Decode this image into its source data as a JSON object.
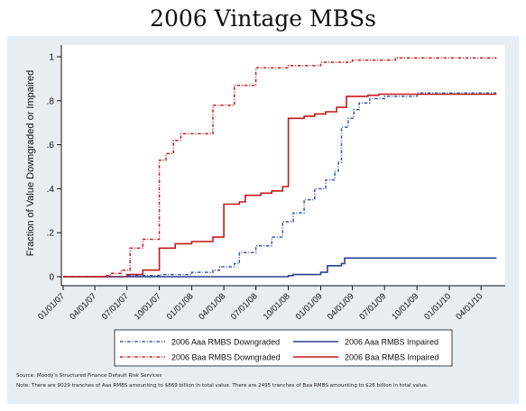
{
  "page": {
    "title": "2006 Vintage MBSs"
  },
  "footnotes": {
    "source": "Source: Moody's Structured Finance Default Risk Services",
    "note": "Note: There are 9029 tranches of Aaa RMBS amounting to $869 billion in total value. There are 2495 tranches of Baa RMBS amounting to $26 billion in total value."
  },
  "chart_data": {
    "type": "line",
    "title": "2006 Vintage MBSs",
    "xlabel": "",
    "ylabel": "Fraction of Value Downgraded or Impaired",
    "xlim": [
      "2007-01-01",
      "2010-06-01"
    ],
    "ylim": [
      0,
      1
    ],
    "x_tick_labels": [
      "01/01/07",
      "04/01/07",
      "07/01/07",
      "10/01/07",
      "01/01/08",
      "04/01/08",
      "07/01/08",
      "10/01/08",
      "01/01/09",
      "04/01/09",
      "07/01/09",
      "10/01/09",
      "01/01/10",
      "04/01/10"
    ],
    "y_tick_labels": [
      "0",
      ".2",
      ".4",
      ".6",
      ".8",
      "1"
    ],
    "y_ticks": [
      0,
      0.2,
      0.4,
      0.6,
      0.8,
      1
    ],
    "grid": false,
    "legend_position": "bottom",
    "series": [
      {
        "name": "2006 Aaa RMBS Downgraded",
        "color": "#3d55a8",
        "style": "dash-dot",
        "points": [
          [
            "2007-01-01",
            0
          ],
          [
            "2007-07-01",
            0.005
          ],
          [
            "2007-10-01",
            0.01
          ],
          [
            "2008-01-01",
            0.02
          ],
          [
            "2008-03-01",
            0.03
          ],
          [
            "2008-03-20",
            0.045
          ],
          [
            "2008-05-01",
            0.06
          ],
          [
            "2008-05-15",
            0.11
          ],
          [
            "2008-07-01",
            0.14
          ],
          [
            "2008-08-15",
            0.18
          ],
          [
            "2008-09-15",
            0.25
          ],
          [
            "2008-10-15",
            0.29
          ],
          [
            "2008-11-15",
            0.35
          ],
          [
            "2008-12-15",
            0.4
          ],
          [
            "2009-01-15",
            0.44
          ],
          [
            "2009-02-10",
            0.48
          ],
          [
            "2009-02-20",
            0.52
          ],
          [
            "2009-03-01",
            0.68
          ],
          [
            "2009-03-20",
            0.72
          ],
          [
            "2009-04-05",
            0.76
          ],
          [
            "2009-04-20",
            0.79
          ],
          [
            "2009-05-20",
            0.81
          ],
          [
            "2009-07-01",
            0.82
          ],
          [
            "2009-10-01",
            0.835
          ],
          [
            "2010-05-15",
            0.835
          ]
        ]
      },
      {
        "name": "2006 Aaa RMBS Impaired",
        "color": "#2b3f8f",
        "style": "solid",
        "points": [
          [
            "2007-01-01",
            0
          ],
          [
            "2008-10-01",
            0.005
          ],
          [
            "2008-10-15",
            0.01
          ],
          [
            "2009-01-01",
            0.02
          ],
          [
            "2009-01-20",
            0.05
          ],
          [
            "2009-03-01",
            0.06
          ],
          [
            "2009-03-10",
            0.085
          ],
          [
            "2010-05-15",
            0.085
          ]
        ]
      },
      {
        "name": "2006 Baa RMBS Downgraded",
        "color": "#d01c1c",
        "style": "dash-dot",
        "points": [
          [
            "2007-01-01",
            0
          ],
          [
            "2007-05-01",
            0.005
          ],
          [
            "2007-05-15",
            0.015
          ],
          [
            "2007-06-15",
            0.03
          ],
          [
            "2007-07-10",
            0.13
          ],
          [
            "2007-08-15",
            0.17
          ],
          [
            "2007-10-01",
            0.53
          ],
          [
            "2007-10-20",
            0.56
          ],
          [
            "2007-11-10",
            0.62
          ],
          [
            "2007-12-01",
            0.65
          ],
          [
            "2008-03-01",
            0.78
          ],
          [
            "2008-05-01",
            0.87
          ],
          [
            "2008-07-01",
            0.95
          ],
          [
            "2008-10-01",
            0.96
          ],
          [
            "2009-01-01",
            0.975
          ],
          [
            "2009-04-01",
            0.985
          ],
          [
            "2009-08-01",
            0.995
          ],
          [
            "2010-05-15",
            0.995
          ]
        ]
      },
      {
        "name": "2006 Baa RMBS Impaired",
        "color": "#c41818",
        "style": "solid",
        "points": [
          [
            "2007-01-01",
            0
          ],
          [
            "2007-07-01",
            0.01
          ],
          [
            "2007-08-15",
            0.03
          ],
          [
            "2007-10-01",
            0.13
          ],
          [
            "2007-11-15",
            0.15
          ],
          [
            "2008-01-01",
            0.16
          ],
          [
            "2008-03-01",
            0.18
          ],
          [
            "2008-04-01",
            0.33
          ],
          [
            "2008-05-15",
            0.34
          ],
          [
            "2008-06-01",
            0.37
          ],
          [
            "2008-07-15",
            0.38
          ],
          [
            "2008-08-15",
            0.39
          ],
          [
            "2008-09-15",
            0.41
          ],
          [
            "2008-10-01",
            0.72
          ],
          [
            "2008-11-15",
            0.73
          ],
          [
            "2008-12-15",
            0.74
          ],
          [
            "2009-01-15",
            0.75
          ],
          [
            "2009-02-15",
            0.77
          ],
          [
            "2009-03-15",
            0.82
          ],
          [
            "2009-05-15",
            0.825
          ],
          [
            "2009-06-15",
            0.83
          ],
          [
            "2010-05-15",
            0.83
          ]
        ]
      }
    ]
  }
}
